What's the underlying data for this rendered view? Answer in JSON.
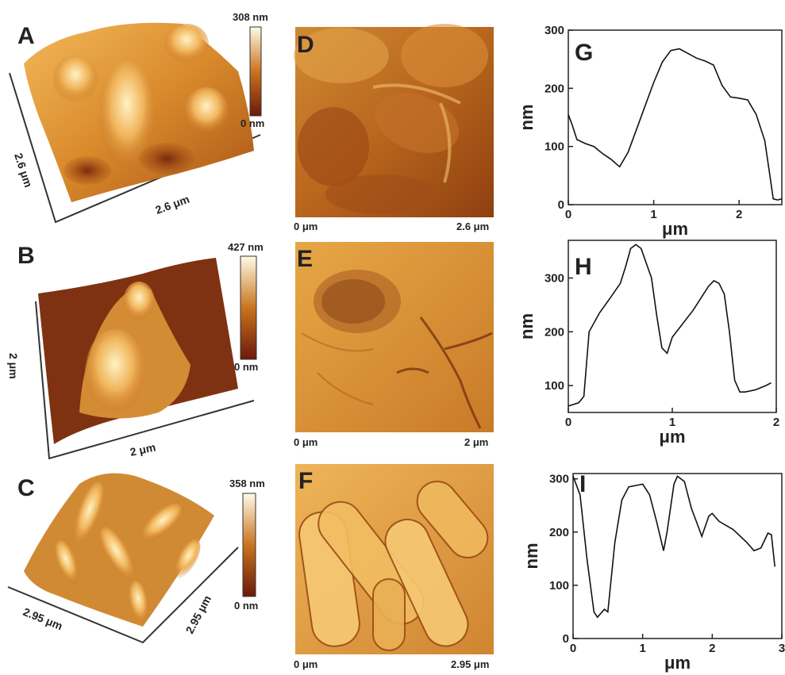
{
  "panels_3d": [
    {
      "letter": "A",
      "scale_max": "308 nm",
      "scale_min": "0 nm",
      "axis_side": "2.6 μm",
      "axis_depth": "2.6 μm"
    },
    {
      "letter": "B",
      "scale_max": "427 nm",
      "scale_min": "0 nm",
      "axis_side": "2 μm",
      "axis_depth": "2 μm"
    },
    {
      "letter": "C",
      "scale_max": "358 nm",
      "scale_min": "0 nm",
      "axis_side": "2.95 μm",
      "axis_depth": "2.95 μm"
    }
  ],
  "panels_2d": [
    {
      "letter": "D",
      "left_label": "0 μm",
      "right_label": "2.6 μm"
    },
    {
      "letter": "E",
      "left_label": "0 μm",
      "right_label": "2 μm"
    },
    {
      "letter": "F",
      "left_label": "0 μm",
      "right_label": "2.95 μm"
    }
  ],
  "colors": {
    "dark": "#6b1e0c",
    "mid": "#c9741f",
    "light": "#fdf6d8",
    "line": "#111111"
  },
  "chart_data": [
    {
      "panel": "G",
      "type": "line",
      "xlabel": "μm",
      "ylabel": "nm",
      "xlim": [
        0,
        2.5
      ],
      "ylim": [
        0,
        300
      ],
      "xticks": [
        0,
        1,
        2
      ],
      "yticks": [
        0,
        100,
        200,
        300
      ],
      "series": [
        {
          "points": [
            [
              0,
              155
            ],
            [
              0.05,
              135
            ],
            [
              0.1,
              112
            ],
            [
              0.2,
              105
            ],
            [
              0.3,
              100
            ],
            [
              0.4,
              88
            ],
            [
              0.5,
              78
            ],
            [
              0.6,
              65
            ],
            [
              0.7,
              90
            ],
            [
              0.8,
              130
            ],
            [
              0.9,
              170
            ],
            [
              1.0,
              210
            ],
            [
              1.1,
              245
            ],
            [
              1.2,
              265
            ],
            [
              1.3,
              268
            ],
            [
              1.4,
              260
            ],
            [
              1.5,
              252
            ],
            [
              1.6,
              247
            ],
            [
              1.7,
              240
            ],
            [
              1.8,
              205
            ],
            [
              1.9,
              185
            ],
            [
              2.0,
              183
            ],
            [
              2.1,
              180
            ],
            [
              2.2,
              155
            ],
            [
              2.3,
              110
            ],
            [
              2.35,
              60
            ],
            [
              2.4,
              10
            ],
            [
              2.45,
              8
            ],
            [
              2.5,
              10
            ]
          ]
        }
      ]
    },
    {
      "panel": "H",
      "type": "line",
      "xlabel": "μm",
      "ylabel": "nm",
      "xlim": [
        0,
        2
      ],
      "ylim": [
        50,
        370
      ],
      "xticks": [
        0,
        1,
        2
      ],
      "xticklabels": [
        "0",
        "1",
        "2"
      ],
      "yticks": [
        100,
        200,
        300
      ],
      "series": [
        {
          "points": [
            [
              0,
              62
            ],
            [
              0.1,
              68
            ],
            [
              0.15,
              80
            ],
            [
              0.2,
              200
            ],
            [
              0.3,
              235
            ],
            [
              0.4,
              262
            ],
            [
              0.5,
              290
            ],
            [
              0.55,
              320
            ],
            [
              0.6,
              355
            ],
            [
              0.65,
              362
            ],
            [
              0.7,
              355
            ],
            [
              0.8,
              300
            ],
            [
              0.85,
              230
            ],
            [
              0.9,
              170
            ],
            [
              0.95,
              160
            ],
            [
              1.0,
              190
            ],
            [
              1.1,
              215
            ],
            [
              1.2,
              240
            ],
            [
              1.3,
              270
            ],
            [
              1.35,
              285
            ],
            [
              1.4,
              295
            ],
            [
              1.45,
              290
            ],
            [
              1.5,
              270
            ],
            [
              1.55,
              200
            ],
            [
              1.6,
              110
            ],
            [
              1.65,
              88
            ],
            [
              1.7,
              88
            ],
            [
              1.8,
              92
            ],
            [
              1.9,
              100
            ],
            [
              1.95,
              105
            ]
          ]
        }
      ]
    },
    {
      "panel": "I",
      "type": "line",
      "xlabel": "μm",
      "ylabel": "nm",
      "xlim": [
        0,
        3
      ],
      "ylim": [
        0,
        310
      ],
      "xticks": [
        0,
        1,
        2,
        3
      ],
      "yticks": [
        0,
        100,
        200,
        300
      ],
      "series": [
        {
          "points": [
            [
              0,
              305
            ],
            [
              0.1,
              270
            ],
            [
              0.2,
              150
            ],
            [
              0.3,
              50
            ],
            [
              0.35,
              40
            ],
            [
              0.45,
              55
            ],
            [
              0.5,
              50
            ],
            [
              0.6,
              180
            ],
            [
              0.7,
              260
            ],
            [
              0.8,
              285
            ],
            [
              1.0,
              290
            ],
            [
              1.1,
              270
            ],
            [
              1.2,
              220
            ],
            [
              1.3,
              165
            ],
            [
              1.35,
              200
            ],
            [
              1.45,
              290
            ],
            [
              1.5,
              305
            ],
            [
              1.6,
              295
            ],
            [
              1.7,
              245
            ],
            [
              1.8,
              210
            ],
            [
              1.85,
              192
            ],
            [
              1.95,
              230
            ],
            [
              2.0,
              235
            ],
            [
              2.1,
              220
            ],
            [
              2.3,
              205
            ],
            [
              2.5,
              180
            ],
            [
              2.6,
              165
            ],
            [
              2.7,
              170
            ],
            [
              2.8,
              198
            ],
            [
              2.85,
              195
            ],
            [
              2.9,
              135
            ]
          ]
        }
      ]
    }
  ]
}
